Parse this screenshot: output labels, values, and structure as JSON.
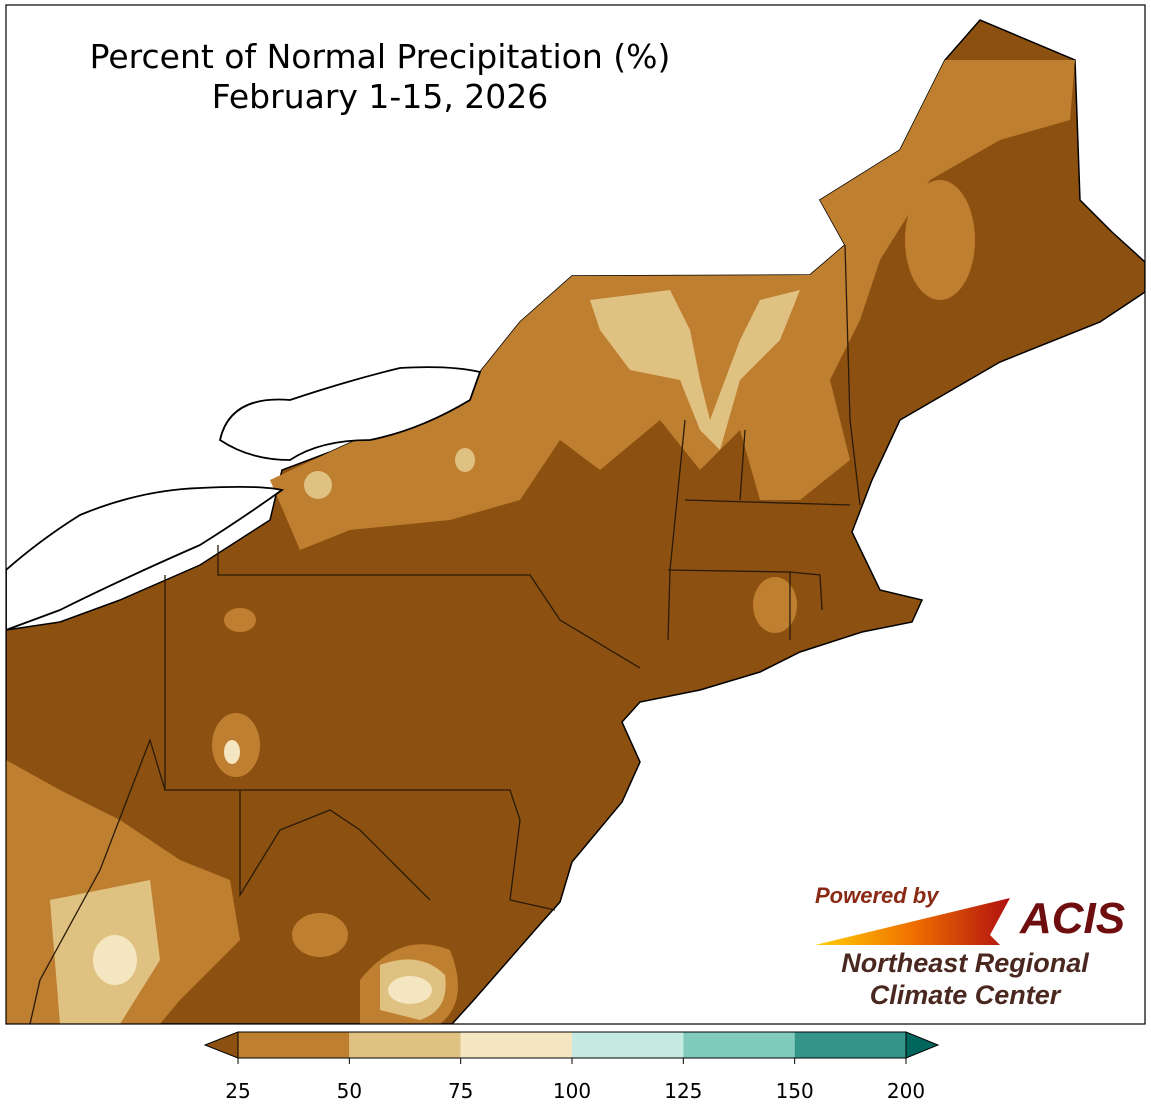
{
  "title": [
    "Percent of Normal Precipitation (%)",
    "February 1-15, 2026"
  ],
  "colorbar": {
    "ticks": [
      25,
      50,
      75,
      100,
      125,
      150,
      200
    ],
    "colors": [
      "#bf7f30",
      "#dfc182",
      "#f5e6c2",
      "#c5eae2",
      "#80cbbd",
      "#35958a"
    ],
    "under_color": "#8c5110",
    "over_color": "#01665e"
  },
  "logo": {
    "powered_by": "Powered by",
    "name": "ACIS",
    "org": [
      "Northeast Regional",
      "Climate Center"
    ]
  }
}
